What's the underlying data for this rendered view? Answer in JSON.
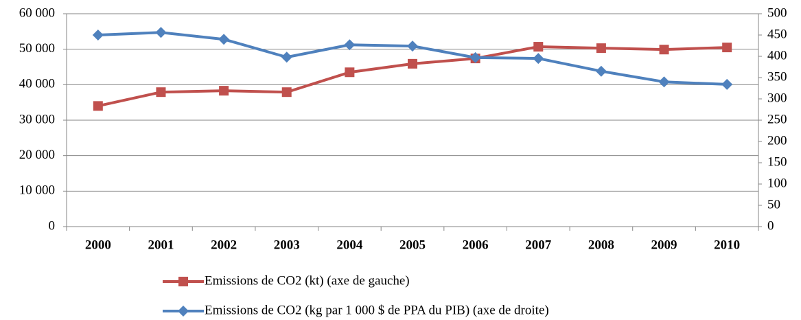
{
  "chart_data": {
    "type": "line",
    "categories": [
      "2000",
      "2001",
      "2002",
      "2003",
      "2004",
      "2005",
      "2006",
      "2007",
      "2008",
      "2009",
      "2010"
    ],
    "series": [
      {
        "name": "Emissions de CO2 (kt)  (axe de gauche)",
        "color": "#c0504d",
        "marker": "square",
        "values": [
          34000,
          37900,
          38300,
          37900,
          43500,
          45900,
          47400,
          50700,
          50300,
          49900,
          50500
        ]
      },
      {
        "name": "Emissions de CO2 (kg par 1 000 $ de PPA du PIB)  (axe de droite)",
        "color": "#4f81bd",
        "marker": "diamond",
        "axis": "y2",
        "values": [
          450,
          456,
          440,
          398,
          427,
          424,
          397,
          395,
          365,
          340,
          334
        ]
      }
    ],
    "ylim": [
      0,
      60000
    ],
    "yticks": [
      0,
      {
        "value": 10000,
        "label": "10 000"
      },
      {
        "value": 20000,
        "label": "20 000"
      },
      {
        "value": 30000,
        "label": "30 000"
      },
      {
        "value": 40000,
        "label": "40 000"
      },
      {
        "value": 50000,
        "label": "50 000"
      },
      {
        "value": 60000,
        "label": "60 000"
      }
    ],
    "y2lim": [
      0,
      500
    ],
    "y2ticks": [
      0,
      50,
      100,
      150,
      200,
      250,
      300,
      350,
      400,
      450,
      500
    ],
    "grid": true,
    "legend": "bottom"
  }
}
